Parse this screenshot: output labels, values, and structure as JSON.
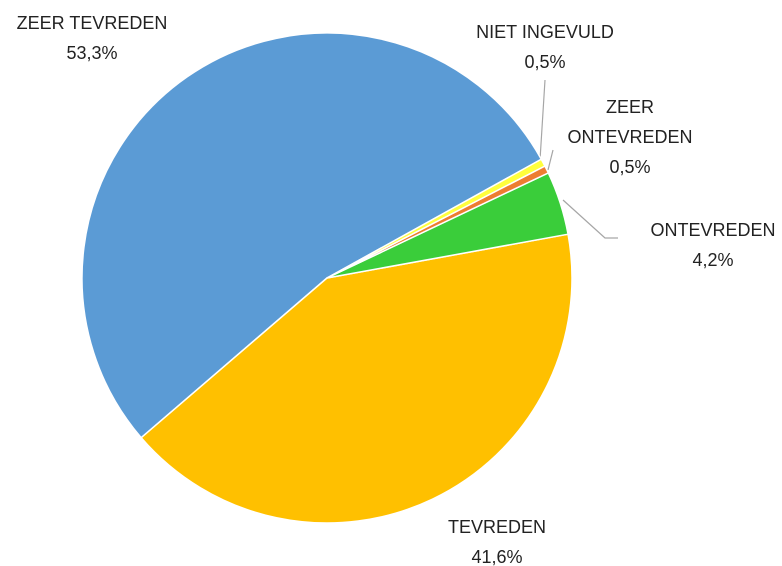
{
  "chart_data": {
    "type": "pie",
    "categories": [
      "ZEER TEVREDEN",
      "TEVREDEN",
      "ONTEVREDEN",
      "ZEER ONTEVREDEN",
      "NIET INGEVULD"
    ],
    "values": [
      53.3,
      41.6,
      4.2,
      0.5,
      0.5
    ],
    "value_labels": [
      "53,3%",
      "41,6%",
      "4,2%",
      "0,5%",
      "0,5%"
    ],
    "colors": [
      "#5b9bd5",
      "#ffc000",
      "#3acd3a",
      "#ed7d31",
      "#ffff3c"
    ]
  }
}
